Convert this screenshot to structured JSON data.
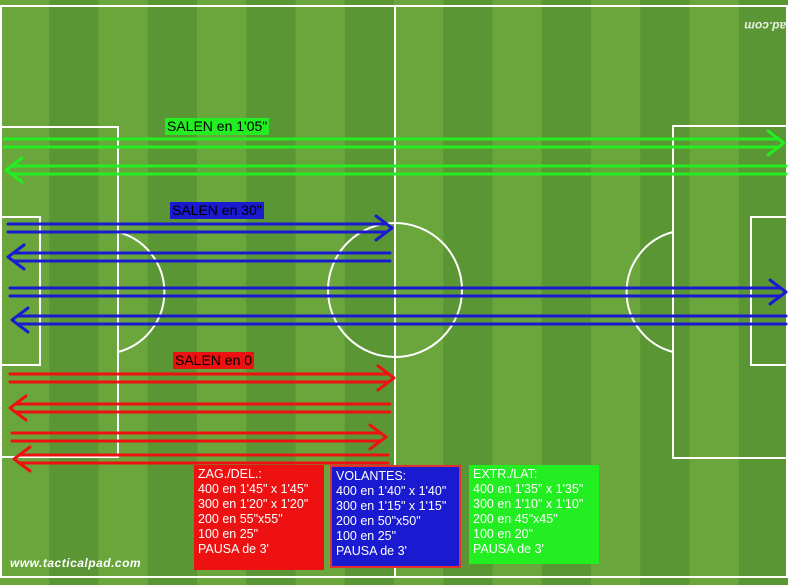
{
  "watermark": {
    "bottom": "www.tacticalpad.com",
    "top_mirrored": "www.tacticalpad.com"
  },
  "colors": {
    "grass_light": "#6aa63c",
    "grass_dark": "#5a9633",
    "lines": "#ffffff",
    "green_group": "#22ee22",
    "blue_group": "#1a1ad0",
    "red_group": "#ee1111"
  },
  "groups": {
    "green": {
      "label": "SALEN en 1'05\"",
      "runs": 2
    },
    "blue": {
      "label": "SALEN en 30\"",
      "runs": 4
    },
    "red": {
      "label": "SALEN en 0",
      "runs": 4
    }
  },
  "boxes": {
    "red": {
      "title": "ZAG./DEL.:",
      "lines": [
        "400 en 1'45\" x 1'45\"",
        "300 en 1'20\" x 1'20\"",
        "200 en 55\"x55\"",
        "100 en 25\"",
        "PAUSA de 3'"
      ]
    },
    "blue": {
      "title": "VOLANTES:",
      "lines": [
        "400 en 1'40\" x 1'40\"",
        "300 en 1'15\" x 1'15\"",
        "200 en 50\"x50\"",
        "100 en 25\"",
        "PAUSA de 3'"
      ]
    },
    "green": {
      "title": "EXTR./LAT:",
      "lines": [
        "400 en 1'35\" x 1'35\"",
        "300 en 1'10\" x 1'10\"",
        "200 en 45\"x45\"",
        "100 en 20\"",
        "PAUSA de 3'"
      ]
    }
  }
}
